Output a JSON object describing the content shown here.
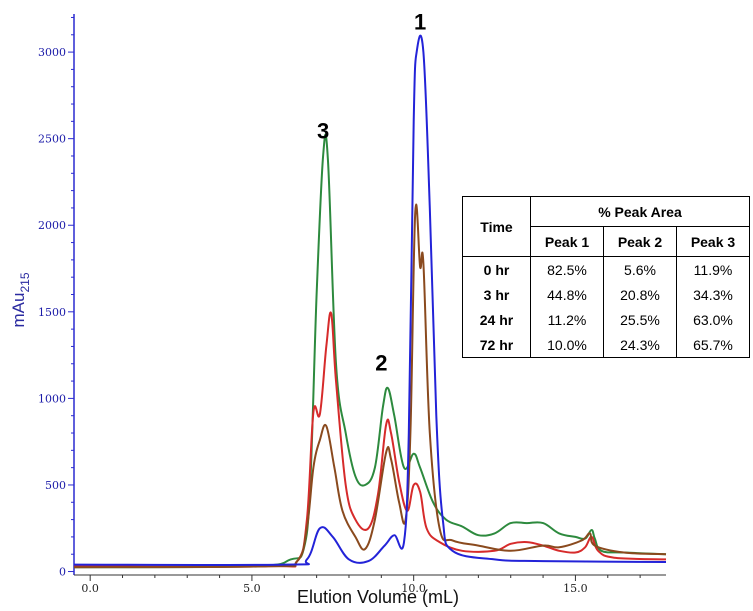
{
  "chart_data": {
    "type": "line",
    "title": "",
    "xlabel": "Elution Volume (mL)",
    "ylabel": "mAu",
    "ylabel_sub": "215",
    "xlim": [
      -0.5,
      17.8
    ],
    "ylim": [
      -20,
      3220
    ],
    "x_ticks": [
      "0.0",
      "5.0",
      "10.0",
      "15.0"
    ],
    "y_ticks": [
      "0",
      "500",
      "1000",
      "1500",
      "2000",
      "2500",
      "3000"
    ],
    "peak_labels": [
      {
        "text": "1",
        "x": 10.2,
        "y": 3130
      },
      {
        "text": "2",
        "x": 9.0,
        "y": 1160
      },
      {
        "text": "3",
        "x": 7.2,
        "y": 2500
      }
    ],
    "series": [
      {
        "color": "#2323d8",
        "points": [
          [
            -0.5,
            40
          ],
          [
            6.0,
            40
          ],
          [
            6.7,
            70
          ],
          [
            7.1,
            250
          ],
          [
            7.5,
            200
          ],
          [
            8.0,
            70
          ],
          [
            8.6,
            60
          ],
          [
            9.1,
            150
          ],
          [
            9.4,
            210
          ],
          [
            9.7,
            170
          ],
          [
            9.85,
            800
          ],
          [
            10.0,
            2600
          ],
          [
            10.1,
            3010
          ],
          [
            10.3,
            3000
          ],
          [
            10.5,
            2100
          ],
          [
            10.7,
            900
          ],
          [
            10.9,
            300
          ],
          [
            11.2,
            120
          ],
          [
            12.5,
            70
          ],
          [
            14.0,
            60
          ],
          [
            17.8,
            55
          ]
        ]
      },
      {
        "color": "#2d8a3e",
        "points": [
          [
            -0.5,
            25
          ],
          [
            5.0,
            30
          ],
          [
            6.2,
            70
          ],
          [
            6.6,
            130
          ],
          [
            6.8,
            500
          ],
          [
            7.0,
            1600
          ],
          [
            7.2,
            2400
          ],
          [
            7.35,
            2380
          ],
          [
            7.6,
            1200
          ],
          [
            7.9,
            800
          ],
          [
            8.2,
            550
          ],
          [
            8.5,
            500
          ],
          [
            8.8,
            600
          ],
          [
            9.05,
            950
          ],
          [
            9.2,
            1060
          ],
          [
            9.4,
            900
          ],
          [
            9.7,
            600
          ],
          [
            10.0,
            680
          ],
          [
            10.2,
            600
          ],
          [
            10.6,
            400
          ],
          [
            11.0,
            300
          ],
          [
            11.5,
            260
          ],
          [
            12.0,
            210
          ],
          [
            12.5,
            220
          ],
          [
            13.0,
            280
          ],
          [
            13.5,
            280
          ],
          [
            14.0,
            280
          ],
          [
            14.5,
            220
          ],
          [
            15.0,
            200
          ],
          [
            15.3,
            190
          ],
          [
            15.5,
            240
          ],
          [
            15.6,
            190
          ],
          [
            15.8,
            120
          ],
          [
            16.5,
            110
          ],
          [
            17.8,
            100
          ]
        ]
      },
      {
        "color": "#d62b2b",
        "points": [
          [
            -0.5,
            30
          ],
          [
            5.5,
            30
          ],
          [
            6.4,
            60
          ],
          [
            6.7,
            300
          ],
          [
            6.9,
            920
          ],
          [
            7.1,
            910
          ],
          [
            7.3,
            1300
          ],
          [
            7.45,
            1490
          ],
          [
            7.6,
            1100
          ],
          [
            7.9,
            500
          ],
          [
            8.2,
            300
          ],
          [
            8.6,
            250
          ],
          [
            8.9,
            450
          ],
          [
            9.15,
            850
          ],
          [
            9.3,
            800
          ],
          [
            9.55,
            520
          ],
          [
            9.8,
            350
          ],
          [
            10.0,
            500
          ],
          [
            10.2,
            460
          ],
          [
            10.4,
            250
          ],
          [
            10.8,
            170
          ],
          [
            11.5,
            120
          ],
          [
            12.5,
            120
          ],
          [
            13.0,
            160
          ],
          [
            13.5,
            170
          ],
          [
            14.0,
            150
          ],
          [
            14.5,
            120
          ],
          [
            15.0,
            110
          ],
          [
            15.3,
            140
          ],
          [
            15.5,
            200
          ],
          [
            15.7,
            120
          ],
          [
            16.2,
            80
          ],
          [
            17.8,
            70
          ]
        ]
      },
      {
        "color": "#8a4a1e",
        "points": [
          [
            -0.5,
            25
          ],
          [
            5.5,
            30
          ],
          [
            6.4,
            60
          ],
          [
            6.7,
            250
          ],
          [
            6.9,
            600
          ],
          [
            7.1,
            760
          ],
          [
            7.3,
            840
          ],
          [
            7.55,
            600
          ],
          [
            7.8,
            350
          ],
          [
            8.2,
            200
          ],
          [
            8.5,
            130
          ],
          [
            8.8,
            300
          ],
          [
            9.15,
            690
          ],
          [
            9.3,
            650
          ],
          [
            9.55,
            400
          ],
          [
            9.75,
            300
          ],
          [
            9.9,
            800
          ],
          [
            10.05,
            2080
          ],
          [
            10.2,
            1760
          ],
          [
            10.3,
            1780
          ],
          [
            10.5,
            800
          ],
          [
            10.8,
            250
          ],
          [
            11.2,
            180
          ],
          [
            12.0,
            150
          ],
          [
            13.0,
            120
          ],
          [
            14.0,
            150
          ],
          [
            14.5,
            140
          ],
          [
            15.2,
            180
          ],
          [
            15.45,
            220
          ],
          [
            15.6,
            150
          ],
          [
            16.5,
            110
          ],
          [
            17.8,
            100
          ]
        ]
      }
    ],
    "table": {
      "header_time": "Time",
      "header_group": "% Peak Area",
      "columns": [
        "Peak 1",
        "Peak 2",
        "Peak 3"
      ],
      "rows": [
        {
          "time": "0 hr",
          "values": [
            "82.5%",
            "5.6%",
            "11.9%"
          ]
        },
        {
          "time": "3 hr",
          "values": [
            "44.8%",
            "20.8%",
            "34.3%"
          ]
        },
        {
          "time": "24 hr",
          "values": [
            "11.2%",
            "25.5%",
            "63.0%"
          ]
        },
        {
          "time": "72 hr",
          "values": [
            "10.0%",
            "24.3%",
            "65.7%"
          ]
        }
      ]
    }
  }
}
